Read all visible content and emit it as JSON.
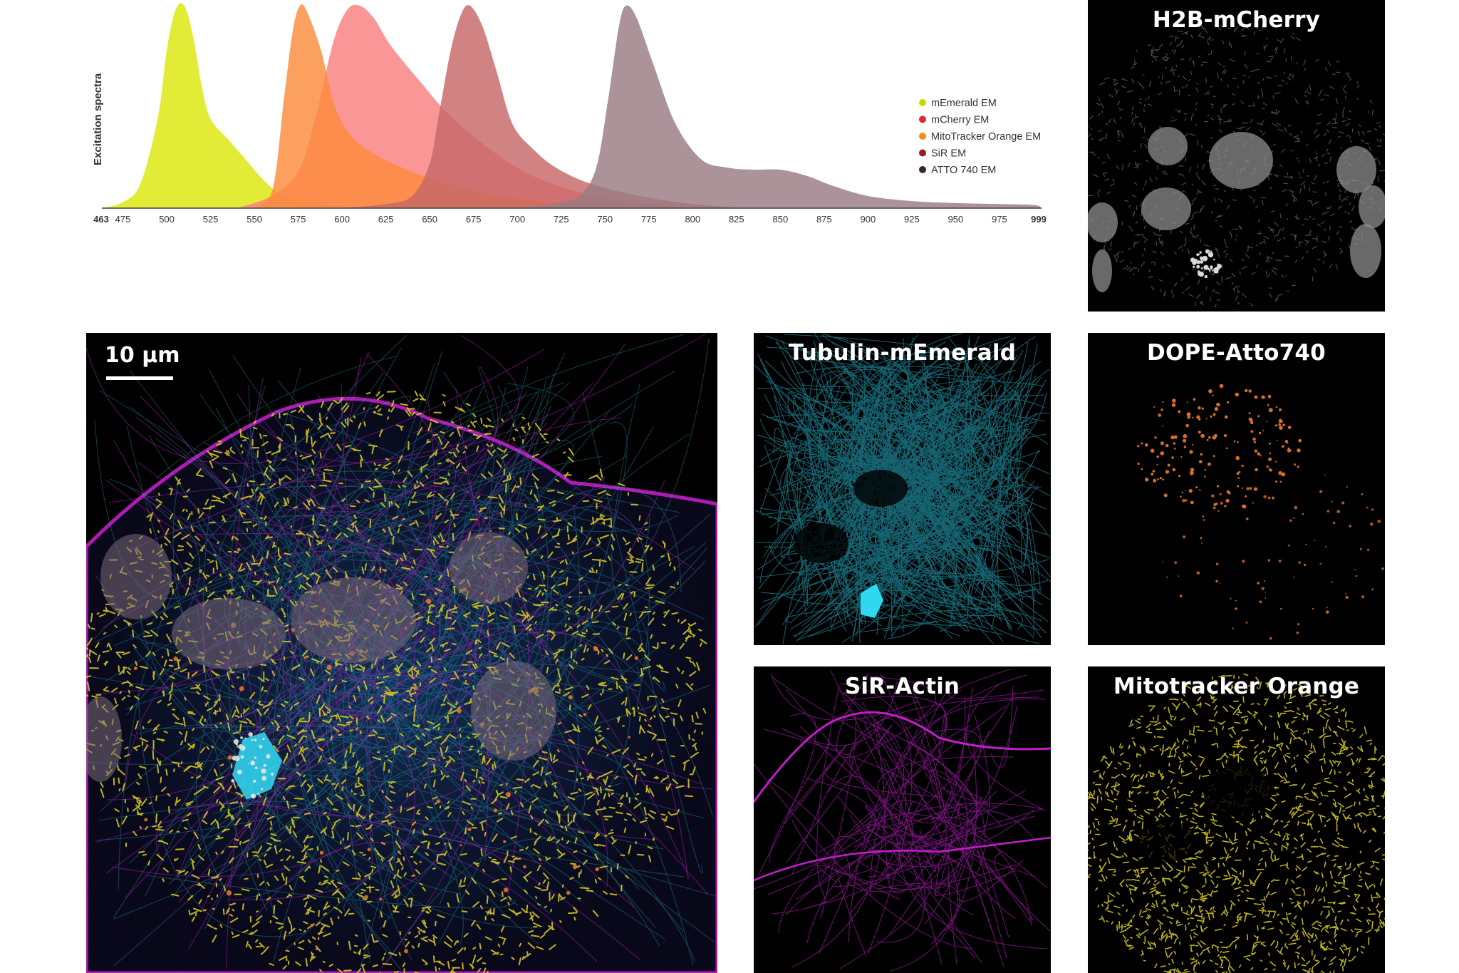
{
  "chart_data": {
    "type": "area",
    "ylabel": "Excitation spectra",
    "xlabel": "",
    "xlim": [
      463,
      999
    ],
    "x_ticks": [
      463,
      475,
      500,
      525,
      550,
      575,
      600,
      625,
      650,
      675,
      700,
      725,
      750,
      775,
      800,
      825,
      850,
      875,
      900,
      925,
      950,
      975,
      999
    ],
    "legend_position": "right",
    "series": [
      {
        "name": "mEmerald EM",
        "color": "#dce70a",
        "points": [
          [
            463,
            0
          ],
          [
            475,
            0.03
          ],
          [
            485,
            0.12
          ],
          [
            495,
            0.45
          ],
          [
            500,
            0.78
          ],
          [
            505,
            0.98
          ],
          [
            510,
            1.0
          ],
          [
            515,
            0.85
          ],
          [
            520,
            0.6
          ],
          [
            525,
            0.44
          ],
          [
            535,
            0.34
          ],
          [
            545,
            0.24
          ],
          [
            555,
            0.14
          ],
          [
            565,
            0.07
          ],
          [
            580,
            0.03
          ],
          [
            600,
            0.01
          ],
          [
            620,
            0
          ]
        ]
      },
      {
        "name": "mCherry EM",
        "color": "#fa7f7f",
        "points": [
          [
            540,
            0
          ],
          [
            560,
            0.06
          ],
          [
            575,
            0.18
          ],
          [
            585,
            0.45
          ],
          [
            595,
            0.82
          ],
          [
            603,
            0.98
          ],
          [
            610,
            1.0
          ],
          [
            618,
            0.94
          ],
          [
            628,
            0.8
          ],
          [
            645,
            0.62
          ],
          [
            660,
            0.47
          ],
          [
            680,
            0.32
          ],
          [
            700,
            0.2
          ],
          [
            720,
            0.12
          ],
          [
            745,
            0.06
          ],
          [
            775,
            0.02
          ],
          [
            800,
            0
          ]
        ]
      },
      {
        "name": "MitoTracker Orange EM",
        "color": "#fb8b3c",
        "points": [
          [
            548,
            0
          ],
          [
            560,
            0.08
          ],
          [
            567,
            0.55
          ],
          [
            572,
            0.88
          ],
          [
            576,
            1.0
          ],
          [
            580,
            0.97
          ],
          [
            588,
            0.78
          ],
          [
            596,
            0.5
          ],
          [
            606,
            0.35
          ],
          [
            620,
            0.26
          ],
          [
            640,
            0.18
          ],
          [
            660,
            0.12
          ],
          [
            690,
            0.06
          ],
          [
            720,
            0.03
          ],
          [
            760,
            0
          ]
        ]
      },
      {
        "name": "SiR EM",
        "color": "#c76868",
        "points": [
          [
            600,
            0
          ],
          [
            625,
            0.02
          ],
          [
            640,
            0.06
          ],
          [
            650,
            0.22
          ],
          [
            655,
            0.45
          ],
          [
            662,
            0.78
          ],
          [
            668,
            0.96
          ],
          [
            673,
            1.0
          ],
          [
            680,
            0.9
          ],
          [
            688,
            0.68
          ],
          [
            697,
            0.42
          ],
          [
            708,
            0.3
          ],
          [
            722,
            0.2
          ],
          [
            742,
            0.12
          ],
          [
            770,
            0.06
          ],
          [
            800,
            0.02
          ],
          [
            830,
            0
          ]
        ]
      },
      {
        "name": "ATTO 740 EM",
        "color": "#9a7a82",
        "points": [
          [
            700,
            0
          ],
          [
            720,
            0.02
          ],
          [
            735,
            0.06
          ],
          [
            745,
            0.2
          ],
          [
            752,
            0.55
          ],
          [
            758,
            0.9
          ],
          [
            762,
            1.0
          ],
          [
            768,
            0.94
          ],
          [
            778,
            0.7
          ],
          [
            790,
            0.42
          ],
          [
            805,
            0.24
          ],
          [
            820,
            0.2
          ],
          [
            835,
            0.19
          ],
          [
            850,
            0.19
          ],
          [
            865,
            0.16
          ],
          [
            880,
            0.11
          ],
          [
            900,
            0.06
          ],
          [
            925,
            0.035
          ],
          [
            950,
            0.025
          ],
          [
            975,
            0.02
          ],
          [
            995,
            0.015
          ],
          [
            999,
            0
          ]
        ]
      }
    ]
  },
  "panels": {
    "h2b": {
      "title": "H2B-mCherry"
    },
    "tubulin": {
      "title": "Tubulin-mEmerald"
    },
    "dope": {
      "title": "DOPE-Atto740"
    },
    "actin": {
      "title": "SiR-Actin"
    },
    "mito": {
      "title": "Mitotracker Orange"
    },
    "merge": {
      "scale_label": "10 µm"
    }
  },
  "colors": {
    "h2b": "#bcbcbc",
    "tubulin": "#2ab7cf",
    "dope": "#f07a28",
    "actin": "#c01ec8",
    "mito": "#e1d21e"
  }
}
